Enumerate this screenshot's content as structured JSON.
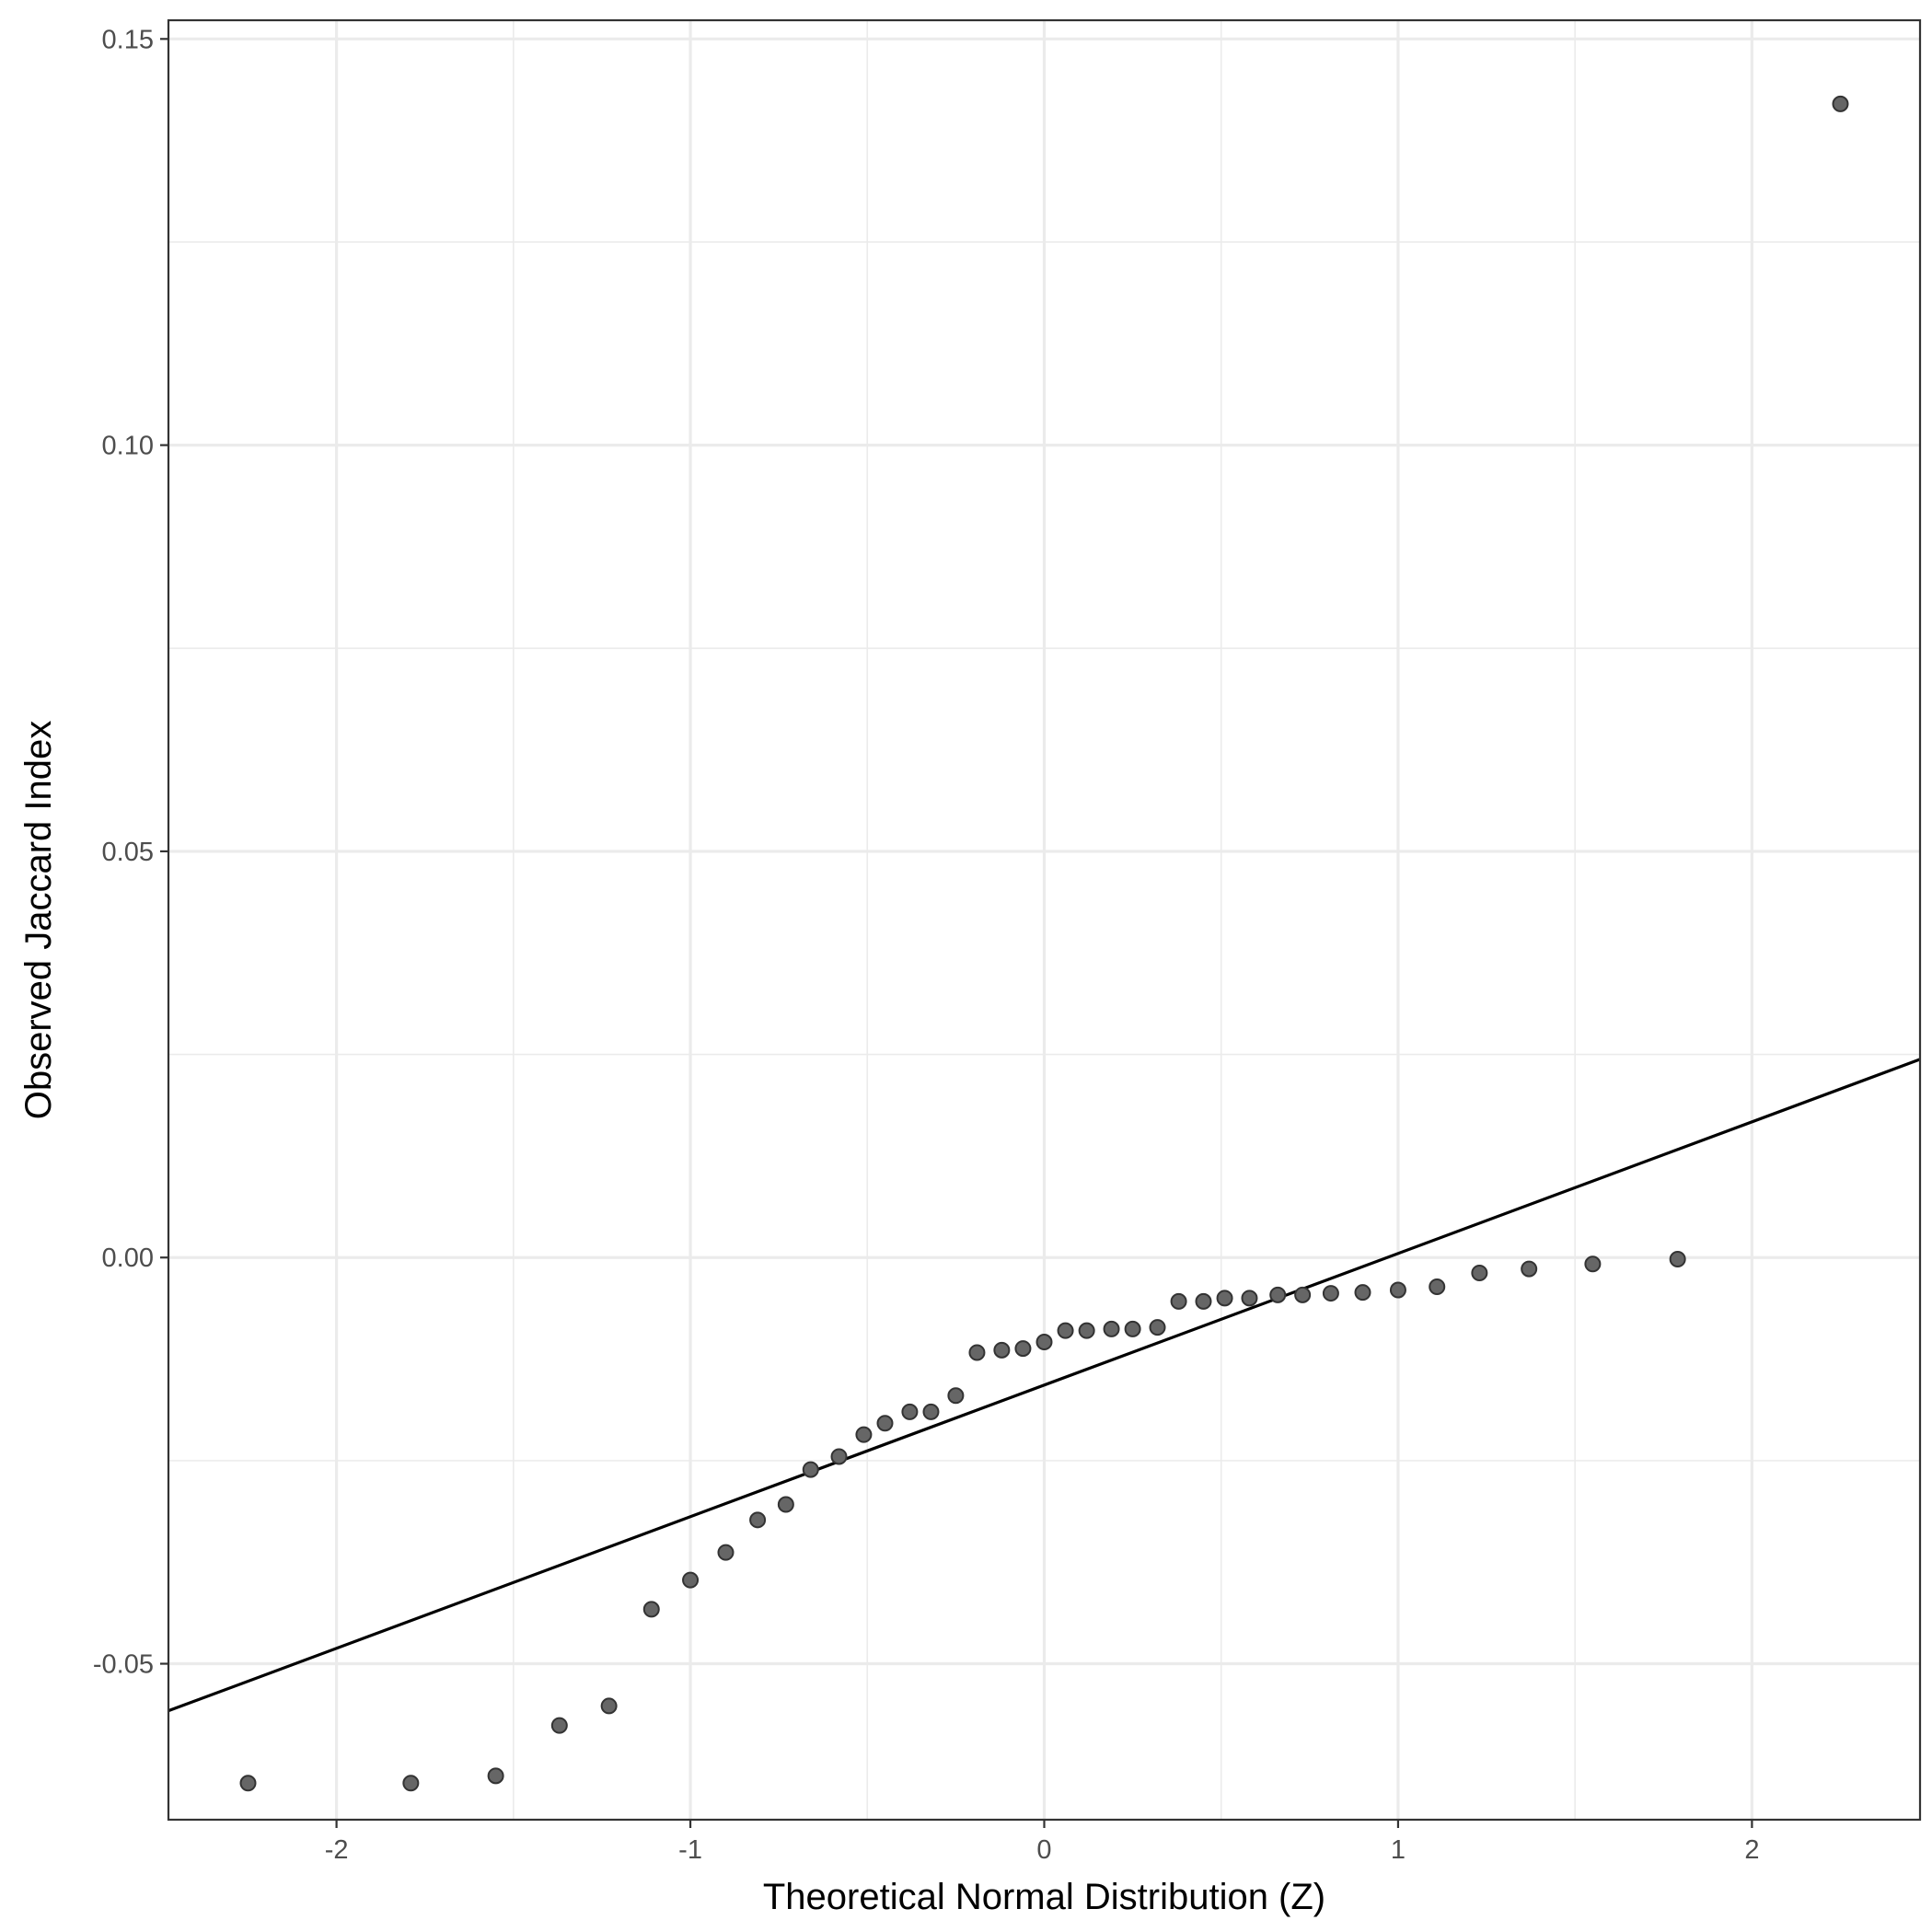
{
  "chart_data": {
    "type": "scatter",
    "title": "",
    "xlabel": "Theoretical Normal Distribution (Z)",
    "ylabel": "Observed Jaccard Index",
    "xlim": [
      -2.475,
      2.475
    ],
    "ylim": [
      -0.0692,
      0.1523
    ],
    "x_ticks": [
      -2,
      -1,
      0,
      1,
      2
    ],
    "x_tick_labels": [
      "-2",
      "-1",
      "0",
      "1",
      "2"
    ],
    "y_ticks": [
      -0.05,
      0.0,
      0.05,
      0.1,
      0.15
    ],
    "y_tick_labels": [
      "-0.05",
      "0.00",
      "0.05",
      "0.10",
      "0.15"
    ],
    "grid": true,
    "legend": "none",
    "point_color": "#666666",
    "line_color": "#000000",
    "reference_line": {
      "intercept": -0.0157,
      "slope": 0.0162
    },
    "points": [
      {
        "x": -2.25,
        "y": -0.0647
      },
      {
        "x": -1.79,
        "y": -0.0647
      },
      {
        "x": -1.55,
        "y": -0.0638
      },
      {
        "x": -1.37,
        "y": -0.0576
      },
      {
        "x": -1.23,
        "y": -0.0552
      },
      {
        "x": -1.11,
        "y": -0.0433
      },
      {
        "x": -1.0,
        "y": -0.0397
      },
      {
        "x": -0.9,
        "y": -0.0363
      },
      {
        "x": -0.81,
        "y": -0.0323
      },
      {
        "x": -0.73,
        "y": -0.0304
      },
      {
        "x": -0.66,
        "y": -0.0261
      },
      {
        "x": -0.58,
        "y": -0.0245
      },
      {
        "x": -0.51,
        "y": -0.0218
      },
      {
        "x": -0.45,
        "y": -0.0204
      },
      {
        "x": -0.38,
        "y": -0.019
      },
      {
        "x": -0.32,
        "y": -0.019
      },
      {
        "x": -0.25,
        "y": -0.017
      },
      {
        "x": -0.19,
        "y": -0.0117
      },
      {
        "x": -0.12,
        "y": -0.0114
      },
      {
        "x": -0.06,
        "y": -0.0112
      },
      {
        "x": 0.0,
        "y": -0.0104
      },
      {
        "x": 0.06,
        "y": -0.009
      },
      {
        "x": 0.12,
        "y": -0.009
      },
      {
        "x": 0.19,
        "y": -0.0088
      },
      {
        "x": 0.25,
        "y": -0.0088
      },
      {
        "x": 0.32,
        "y": -0.0086
      },
      {
        "x": 0.38,
        "y": -0.0054
      },
      {
        "x": 0.45,
        "y": -0.0054
      },
      {
        "x": 0.51,
        "y": -0.005
      },
      {
        "x": 0.58,
        "y": -0.005
      },
      {
        "x": 0.66,
        "y": -0.0046
      },
      {
        "x": 0.73,
        "y": -0.0046
      },
      {
        "x": 0.81,
        "y": -0.0044
      },
      {
        "x": 0.9,
        "y": -0.0043
      },
      {
        "x": 1.0,
        "y": -0.004
      },
      {
        "x": 1.11,
        "y": -0.0036
      },
      {
        "x": 1.23,
        "y": -0.0019
      },
      {
        "x": 1.37,
        "y": -0.0014
      },
      {
        "x": 1.55,
        "y": -0.0008
      },
      {
        "x": 1.79,
        "y": -0.0002
      },
      {
        "x": 2.25,
        "y": 0.142
      }
    ]
  }
}
